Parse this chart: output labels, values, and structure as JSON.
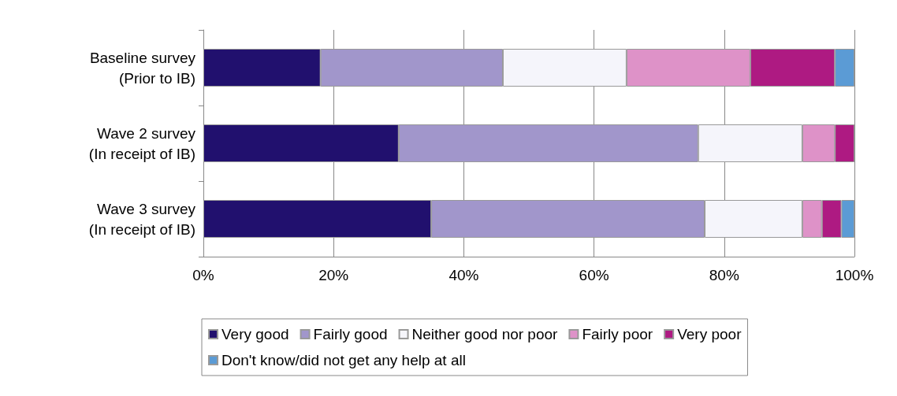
{
  "chart_data": {
    "type": "bar",
    "orientation": "horizontal",
    "stacked": true,
    "categories": [
      "Baseline survey\n(Prior to IB)",
      "Wave 2 survey\n(In receipt of IB)",
      "Wave 3 survey\n(In receipt of IB)"
    ],
    "series": [
      {
        "name": "Very good",
        "color": "#21106e",
        "values": [
          18,
          30,
          35
        ]
      },
      {
        "name": "Fairly good",
        "color": "#a196cb",
        "values": [
          28,
          46,
          42
        ]
      },
      {
        "name": "Neither good nor poor",
        "color": "#f5f5fb",
        "values": [
          19,
          16,
          15
        ]
      },
      {
        "name": "Fairly poor",
        "color": "#de92c8",
        "values": [
          19,
          5,
          3
        ]
      },
      {
        "name": "Very poor",
        "color": "#ae1a82",
        "values": [
          13,
          3,
          3
        ]
      },
      {
        "name": "Don't know/did not get any help at all",
        "color": "#5b9bd5",
        "values": [
          3,
          0,
          2
        ]
      }
    ],
    "xlim": [
      0,
      100
    ],
    "xticks": [
      {
        "value": 0,
        "label": "0%"
      },
      {
        "value": 20,
        "label": "20%"
      },
      {
        "value": 40,
        "label": "40%"
      },
      {
        "value": 60,
        "label": "60%"
      },
      {
        "value": 80,
        "label": "80%"
      },
      {
        "value": 100,
        "label": "100%"
      }
    ],
    "grid": "x",
    "legend": "bottom"
  }
}
